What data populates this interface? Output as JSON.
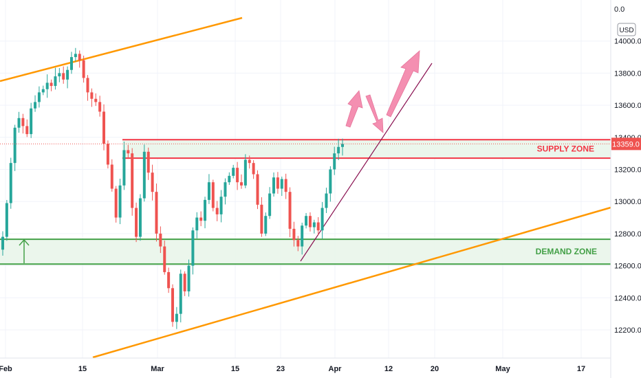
{
  "chart_data": {
    "type": "candlestick",
    "currency": "USD",
    "top_label": "0.0",
    "last_price": "13359.0",
    "y_ticks": [
      "14000.0",
      "13800.0",
      "13600.0",
      "13400.0",
      "13200.0",
      "13000.0",
      "12800.0",
      "12600.0",
      "12400.0",
      "12200.0"
    ],
    "y_tick_values": [
      14000,
      13800,
      13600,
      13400,
      13200,
      13000,
      12800,
      12600,
      12400,
      12200
    ],
    "ylim": [
      12040,
      14200
    ],
    "x_ticks": [
      "Feb",
      "15",
      "Mar",
      "15",
      "23",
      "Apr",
      "12",
      "20",
      "May",
      "17"
    ],
    "zones": [
      {
        "label": "SUPPLY ZONE",
        "top": 13385,
        "bottom": 13270,
        "color": "#f23645"
      },
      {
        "label": "DEMAND ZONE",
        "top": 12765,
        "bottom": 12610,
        "color": "#43a047"
      }
    ],
    "colors": {
      "up": "#26a69a",
      "down": "#ef5350",
      "trendline": "#ff9800",
      "support": "#880e4f",
      "arrow": "#f48fb1"
    },
    "closes": [
      12780,
      12990,
      13240,
      13460,
      13520,
      13470,
      13420,
      13580,
      13620,
      13680,
      13700,
      13740,
      13720,
      13780,
      13800,
      13760,
      13820,
      13900,
      13920,
      13880,
      13770,
      13680,
      13640,
      13620,
      13560,
      13360,
      13230,
      13080,
      12900,
      13100,
      13320,
      13300,
      12960,
      12780,
      13020,
      13310,
      13180,
      13060,
      12800,
      12720,
      12560,
      12460,
      12250,
      12300,
      12550,
      12440,
      12600,
      12820,
      12900,
      12880,
      13010,
      13120,
      12960,
      12920,
      13030,
      13120,
      13160,
      13210,
      13120,
      13100,
      13260,
      13240,
      13170,
      12980,
      12800,
      12910,
      13050,
      13150,
      13080,
      13140,
      13060,
      12830,
      12760,
      12720,
      12850,
      12910,
      12840,
      12870,
      12820,
      12960,
      13050,
      13200,
      13300,
      13340,
      13359
    ]
  }
}
